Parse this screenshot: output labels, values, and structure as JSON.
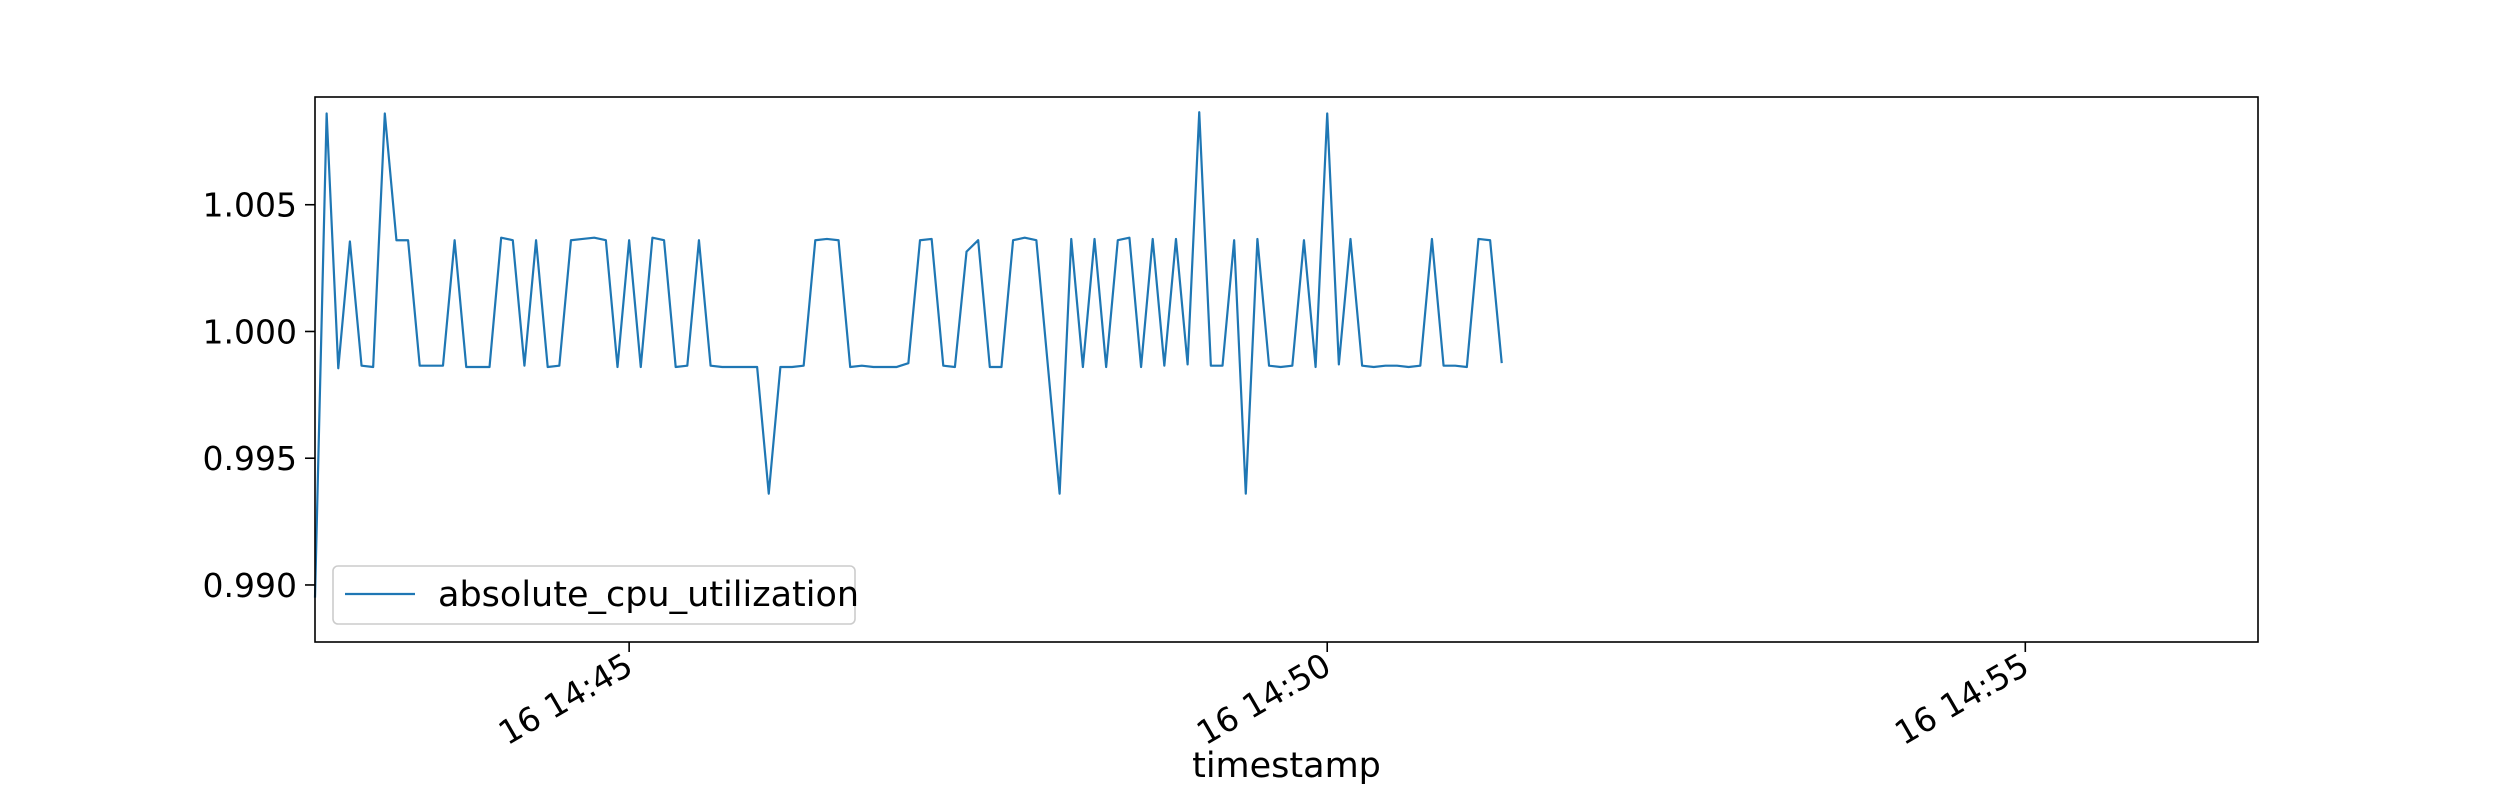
{
  "chart_data": {
    "type": "line",
    "title": "",
    "xlabel": "timestamp",
    "ylabel": "",
    "x_start": "16 14:42:45",
    "x_step_seconds": 5,
    "xlim": [
      "16 14:42:45",
      "16 14:56:40"
    ],
    "ylim": [
      0.98775,
      1.00925
    ],
    "x_ticks": [
      "16 14:45",
      "16 14:50",
      "16 14:55"
    ],
    "y_ticks": [
      {
        "value": 0.99,
        "label": "0.990"
      },
      {
        "value": 0.995,
        "label": "0.995"
      },
      {
        "value": 1.0,
        "label": "1.000"
      },
      {
        "value": 1.005,
        "label": "1.005"
      }
    ],
    "grid": false,
    "legend_position": "lower-left",
    "series": [
      {
        "name": "absolute_cpu_utilization",
        "color": "#1f77b4",
        "values": [
          0.9895,
          1.0086,
          0.99855,
          1.00355,
          0.99865,
          0.9986,
          1.0086,
          1.0036,
          1.0036,
          0.99865,
          0.99865,
          0.99865,
          1.0036,
          0.9986,
          0.9986,
          0.9986,
          1.0037,
          1.0036,
          0.99865,
          1.0036,
          0.9986,
          0.99865,
          1.0036,
          1.00365,
          1.0037,
          1.0036,
          0.9986,
          1.0036,
          0.9986,
          1.0037,
          1.0036,
          0.9986,
          0.99865,
          1.0036,
          0.99865,
          0.9986,
          0.9986,
          0.9986,
          0.9986,
          0.9936,
          0.9986,
          0.9986,
          0.99865,
          1.0036,
          1.00365,
          1.0036,
          0.9986,
          0.99865,
          0.9986,
          0.9986,
          0.9986,
          0.99875,
          1.0036,
          1.00365,
          0.99865,
          0.9986,
          1.00315,
          1.0036,
          0.9986,
          0.9986,
          1.0036,
          1.0037,
          1.0036,
          0.9986,
          0.9936,
          1.00365,
          0.9986,
          1.00365,
          0.9986,
          1.0036,
          1.0037,
          0.9986,
          1.00365,
          0.99865,
          1.00365,
          0.9987,
          1.00865,
          0.99865,
          0.99865,
          1.0036,
          0.9936,
          1.00365,
          0.99865,
          0.9986,
          0.99865,
          1.0036,
          0.9986,
          1.0086,
          0.9987,
          1.00365,
          0.99865,
          0.9986,
          0.99865,
          0.99865,
          0.9986,
          0.99865,
          1.00365,
          0.99865,
          0.99865,
          0.9986,
          1.00365,
          1.0036,
          0.99875
        ]
      }
    ]
  }
}
